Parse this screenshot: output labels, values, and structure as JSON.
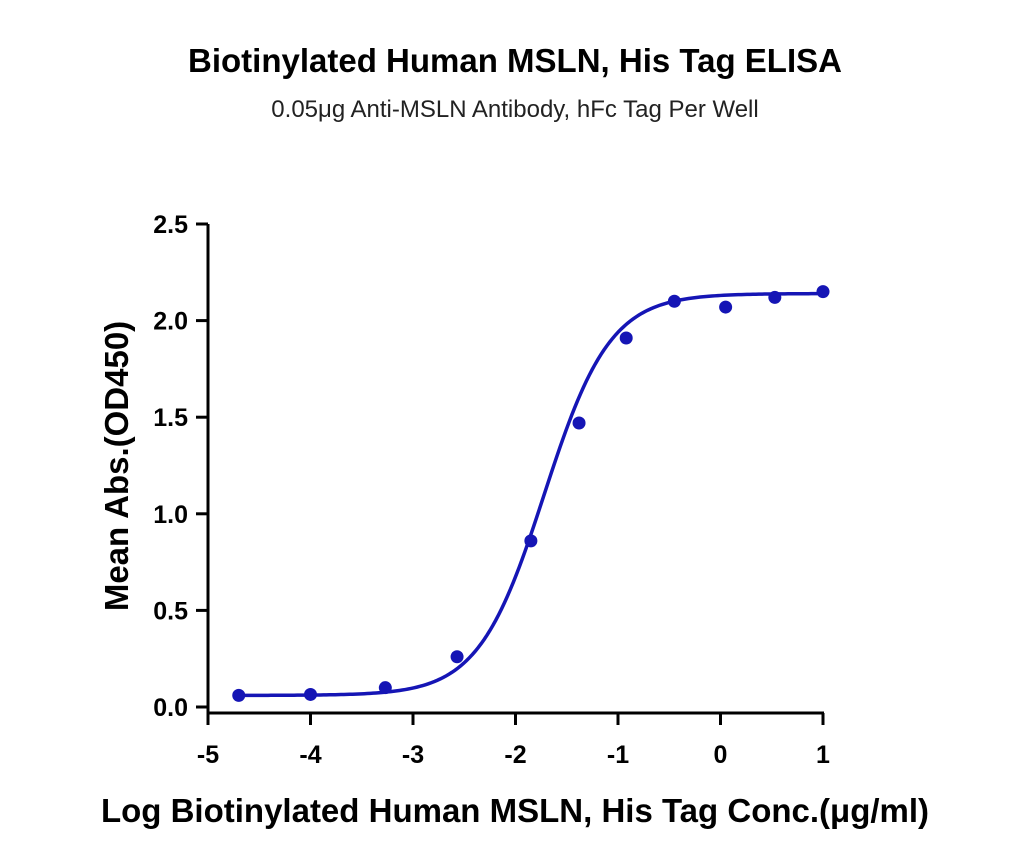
{
  "chart_data": {
    "type": "scatter",
    "title": "Biotinylated Human MSLN, His Tag ELISA",
    "subtitle": "0.05μg Anti-MSLN Antibody, hFc Tag Per Well",
    "xlabel": "Log Biotinylated Human MSLN, His Tag Conc.(μg/ml)",
    "ylabel": "Mean Abs.(OD450)",
    "xlim": [
      -5,
      1
    ],
    "ylim": [
      0,
      2.5
    ],
    "x_ticks": [
      "-5",
      "-4",
      "-3",
      "-2",
      "-1",
      "0",
      "1"
    ],
    "y_ticks": [
      "0.0",
      "0.5",
      "1.0",
      "1.5",
      "2.0",
      "2.5"
    ],
    "grid": false,
    "color": "#1515b5",
    "series": [
      {
        "points": [
          {
            "x": -4.7,
            "y": 0.06
          },
          {
            "x": -4.0,
            "y": 0.065
          },
          {
            "x": -3.27,
            "y": 0.1
          },
          {
            "x": -2.57,
            "y": 0.26
          },
          {
            "x": -1.85,
            "y": 0.86
          },
          {
            "x": -1.38,
            "y": 1.47
          },
          {
            "x": -0.92,
            "y": 1.91
          },
          {
            "x": -0.45,
            "y": 2.1
          },
          {
            "x": 0.05,
            "y": 2.07
          },
          {
            "x": 0.53,
            "y": 2.12
          },
          {
            "x": 1.0,
            "y": 2.15
          }
        ]
      }
    ],
    "fit": {
      "model": "4PL",
      "bottom": 0.06,
      "top": 2.14,
      "logEC50": -1.72,
      "hill": 1.35
    }
  }
}
